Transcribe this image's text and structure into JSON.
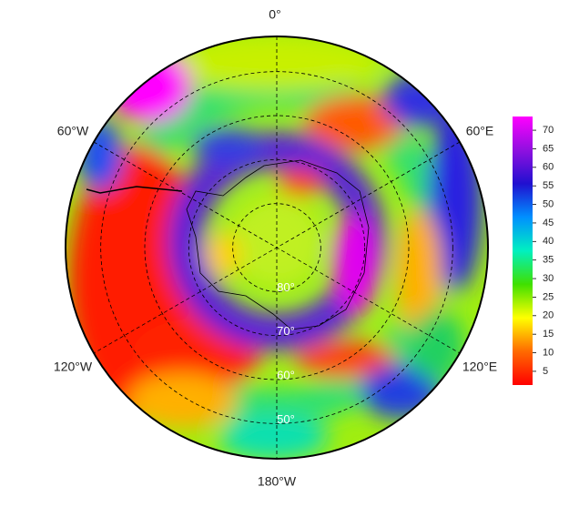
{
  "map": {
    "longitude_labels": {
      "top": "0°",
      "upper_left": "60°W",
      "upper_right": "60°E",
      "lower_left": "120°W",
      "lower_right": "120°E",
      "bottom": "180°W"
    },
    "lat_lim": [
      -90,
      -42
    ],
    "latitude_circles": [
      {
        "value": -80,
        "label": "80°"
      },
      {
        "value": -70,
        "label": "70°"
      },
      {
        "value": -60,
        "label": "60°"
      },
      {
        "value": -50,
        "label": "50°"
      }
    ],
    "colorbar": {
      "lim": [
        1.3,
        73.7
      ],
      "ticks": [
        5,
        10,
        15,
        20,
        25,
        30,
        35,
        40,
        45,
        50,
        55,
        60,
        65,
        70
      ],
      "colors": [
        "#ff0000",
        "#ff6a00",
        "#ffff00",
        "#40e000",
        "#00f0c0",
        "#0090ff",
        "#2010d0",
        "#9010e0",
        "#ff00ff"
      ]
    }
  }
}
